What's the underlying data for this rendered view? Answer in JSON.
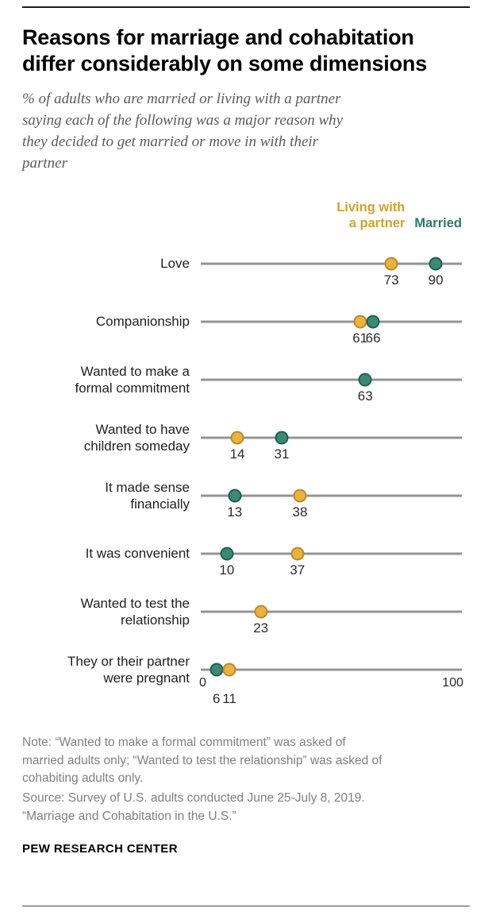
{
  "header": {
    "title": "Reasons for marriage and cohabitation\ndiffer considerably on some dimensions",
    "subtitle": "% of adults who are married or living with a partner\nsaying each of the following was a major reason why\nthey decided to get married or move in with their\npartner"
  },
  "legend": {
    "partner_label": "Living with\na partner",
    "married_label": "Married",
    "partner_color": "#D3A12E",
    "married_color": "#2E7A66"
  },
  "chart_data": {
    "type": "scatter",
    "subtype": "dot-plot",
    "title": "Reasons for marriage and cohabitation differ considerably on some dimensions",
    "axis": {
      "min": 0,
      "max": 100,
      "tick_labels": [
        "0",
        "100"
      ],
      "grid": false
    },
    "legend_position": "top-right",
    "series_colors": {
      "partner": {
        "fill": "#EBB23E",
        "border": "#BB8A2E"
      },
      "married": {
        "fill": "#3D8A74",
        "border": "#20604F"
      }
    },
    "series_names": {
      "partner": "Living with a partner",
      "married": "Married"
    },
    "rows": [
      {
        "label": "Love",
        "partner": 73,
        "married": 90
      },
      {
        "label": "Companionship",
        "partner": 61,
        "married": 66
      },
      {
        "label": "Wanted to make a\nformal commitment",
        "partner": null,
        "married": 63
      },
      {
        "label": "Wanted to have\nchildren someday",
        "partner": 14,
        "married": 31
      },
      {
        "label": "It made sense\nfinancially",
        "partner": 38,
        "married": 13
      },
      {
        "label": "It was convenient",
        "partner": 37,
        "married": 10
      },
      {
        "label": "Wanted to test the\nrelationship",
        "partner": 23,
        "married": null
      },
      {
        "label": "They or their partner\nwere pregnant",
        "partner": 11,
        "married": 6
      }
    ]
  },
  "footer": {
    "note": "Note: “Wanted to make a formal commitment” was asked of\nmarried adults only; “Wanted to test the relationship” was asked of\ncohabiting adults only.",
    "source": "Source: Survey of U.S. adults conducted June 25-July 8, 2019.\n“Marriage and Cohabitation in the U.S.”",
    "brand": "PEW RESEARCH CENTER"
  }
}
